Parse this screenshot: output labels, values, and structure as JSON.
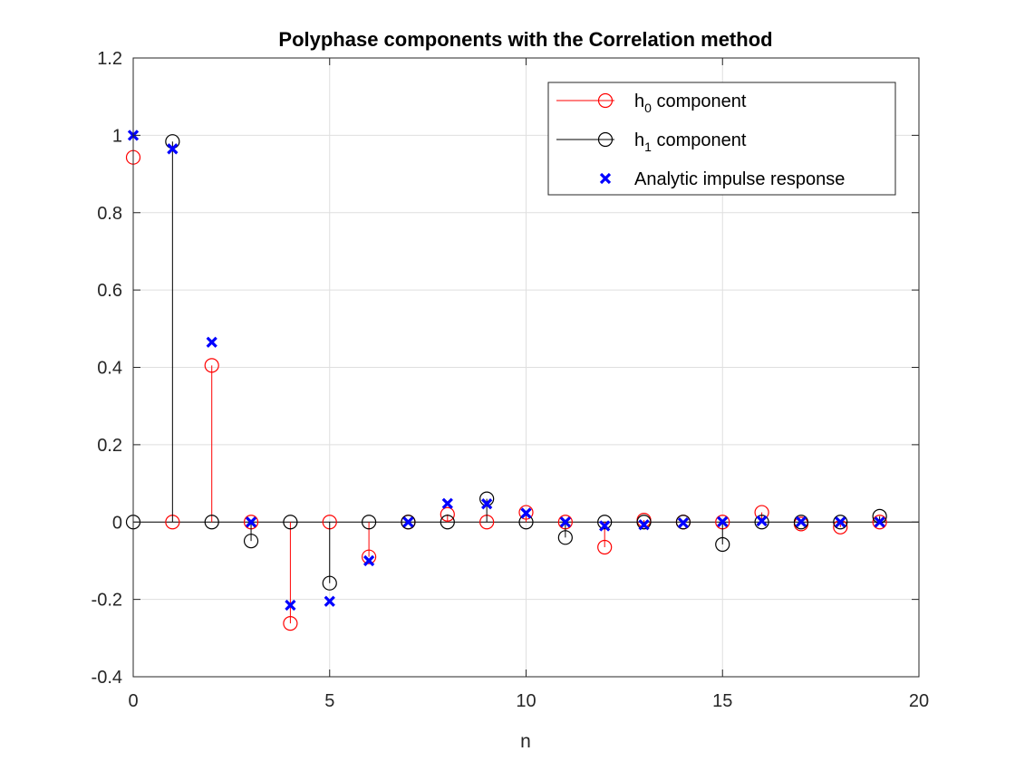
{
  "chart_data": {
    "type": "scatter",
    "title": "Polyphase components with the Correlation method",
    "xlabel": "n",
    "ylabel": "",
    "xlim": [
      0,
      20
    ],
    "ylim": [
      -0.4,
      1.2
    ],
    "xticks": [
      0,
      5,
      10,
      15,
      20
    ],
    "yticks": [
      -0.4,
      -0.2,
      0,
      0.2,
      0.4,
      0.6,
      0.8,
      1,
      1.2
    ],
    "x_tick_labels": [
      "0",
      "5",
      "10",
      "15",
      "20"
    ],
    "y_tick_labels": [
      "-0.4",
      "-0.2",
      "0",
      "0.2",
      "0.4",
      "0.6",
      "0.8",
      "1",
      "1.2"
    ],
    "grid": true,
    "legend_position": "top-right",
    "series": [
      {
        "name": "h0 component",
        "legend_base": "h",
        "legend_sub": "0",
        "legend_rest": " component",
        "style": "stem",
        "color": "#ff0000",
        "x": [
          0,
          1,
          2,
          3,
          4,
          5,
          6,
          7,
          8,
          9,
          10,
          11,
          12,
          13,
          14,
          15,
          16,
          17,
          18,
          19
        ],
        "values": [
          0.943,
          0,
          0.405,
          0,
          -0.262,
          0,
          -0.09,
          0,
          0.02,
          0,
          0.025,
          0,
          -0.065,
          0.005,
          0,
          0,
          0.025,
          -0.005,
          -0.013,
          0
        ]
      },
      {
        "name": "h1 component",
        "legend_base": "h",
        "legend_sub": "1",
        "legend_rest": " component",
        "style": "stem",
        "color": "#000000",
        "x": [
          0,
          1,
          2,
          3,
          4,
          5,
          6,
          7,
          8,
          9,
          10,
          11,
          12,
          13,
          14,
          15,
          16,
          17,
          18,
          19
        ],
        "values": [
          0,
          0.984,
          0,
          -0.049,
          0,
          -0.158,
          0,
          0,
          0,
          0.06,
          0,
          -0.04,
          0,
          0,
          0,
          -0.058,
          0,
          0,
          0,
          0.015
        ]
      },
      {
        "name": "Analytic impulse response",
        "legend_base": "Analytic impulse response",
        "legend_sub": "",
        "legend_rest": "",
        "style": "marker-x",
        "color": "#0000ff",
        "x": [
          0,
          1,
          2,
          3,
          4,
          5,
          6,
          7,
          8,
          9,
          10,
          11,
          12,
          13,
          14,
          15,
          16,
          17,
          18,
          19
        ],
        "values": [
          1,
          0.965,
          0.465,
          0,
          -0.215,
          -0.205,
          -0.1,
          0,
          0.048,
          0.047,
          0.023,
          0,
          -0.01,
          -0.007,
          -0.002,
          0.001,
          0.003,
          0.001,
          0,
          0
        ]
      }
    ]
  }
}
